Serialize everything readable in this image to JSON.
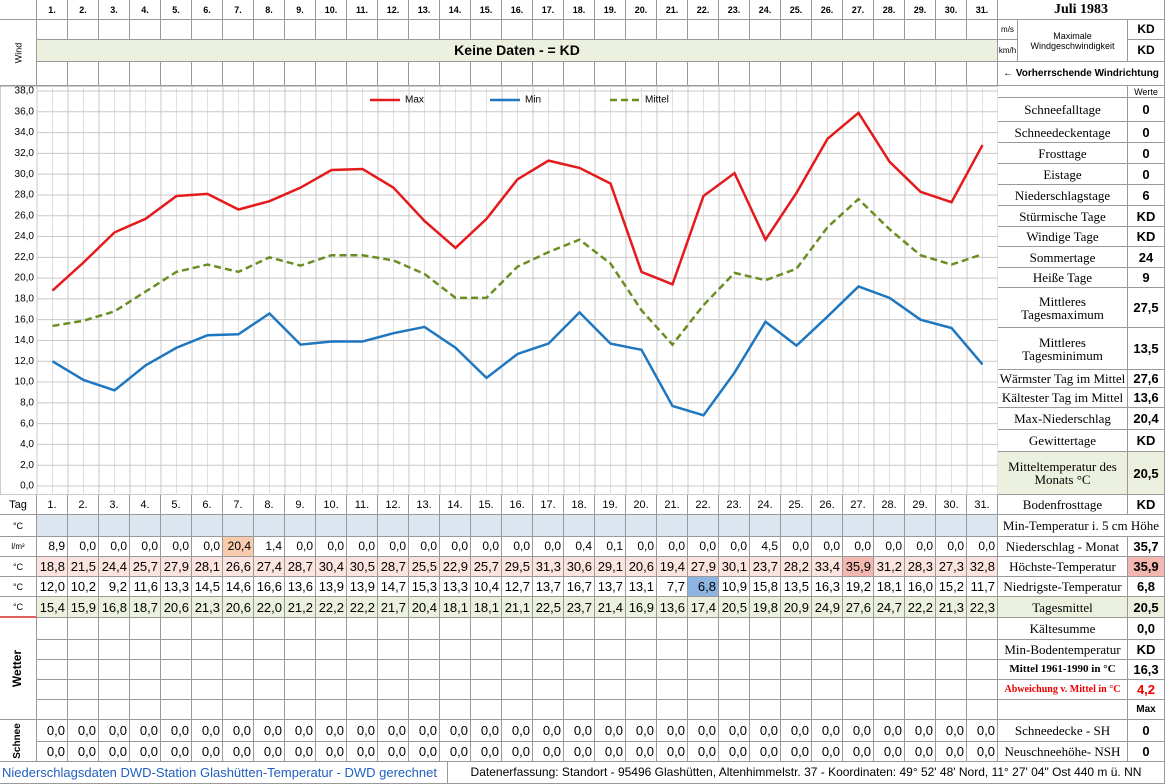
{
  "header": {
    "month": "Juli 1983",
    "wind_label": "Wind",
    "no_data": "Keine Daten -  = KD",
    "unit_ms": "m/s",
    "unit_kmh": "km/h",
    "max_wind_label": "Maximale Windgeschwindigkeit",
    "max_wind_ms": "KD",
    "max_wind_kmh": "KD",
    "wind_dir": "← Vorherrschende Windrichtung",
    "values_header": "Werte"
  },
  "chart_data": {
    "type": "line",
    "categories": [
      "1.",
      "2.",
      "3.",
      "4.",
      "5.",
      "6.",
      "7.",
      "8.",
      "9.",
      "10.",
      "11.",
      "12.",
      "13.",
      "14.",
      "15.",
      "16.",
      "17.",
      "18.",
      "19.",
      "20.",
      "21.",
      "22.",
      "23.",
      "24.",
      "25.",
      "26.",
      "27.",
      "28.",
      "29.",
      "30.",
      "31."
    ],
    "series": [
      {
        "name": "Max",
        "color": "#e41a1c",
        "dash": false,
        "values": [
          18.8,
          21.5,
          24.4,
          25.7,
          27.9,
          28.1,
          26.6,
          27.4,
          28.7,
          30.4,
          30.5,
          28.7,
          25.5,
          22.9,
          25.7,
          29.5,
          31.3,
          30.6,
          29.1,
          20.6,
          19.4,
          27.9,
          30.1,
          23.7,
          28.2,
          33.4,
          35.9,
          31.2,
          28.3,
          27.3,
          32.8
        ],
        "value_labels": [
          "18,8",
          "21,5",
          "24,4",
          "25,7",
          "27,9",
          "28,1",
          "26,6",
          "27,4",
          "28,7",
          "30,4",
          "30,5",
          "28,7",
          "25,5",
          "22,9",
          "25,7",
          "29,5",
          "31,3",
          "30,6",
          "29,1",
          "20,6",
          "19,4",
          "27,9",
          "30,1",
          "23,7",
          "28,2",
          "33,4",
          "35,9",
          "31,2",
          "28,3",
          "27,3",
          "32,8"
        ]
      },
      {
        "name": "Min",
        "color": "#1f77c0",
        "dash": false,
        "values": [
          12.0,
          10.2,
          9.2,
          11.6,
          13.3,
          14.5,
          14.6,
          16.6,
          13.6,
          13.9,
          13.9,
          14.7,
          15.3,
          13.3,
          10.4,
          12.7,
          13.7,
          16.7,
          13.7,
          13.1,
          7.7,
          6.8,
          10.9,
          15.8,
          13.5,
          16.3,
          19.2,
          18.1,
          16.0,
          15.2,
          11.7
        ],
        "value_labels": [
          "12,0",
          "10,2",
          "9,2",
          "11,6",
          "13,3",
          "14,5",
          "14,6",
          "16,6",
          "13,6",
          "13,9",
          "13,9",
          "14,7",
          "15,3",
          "13,3",
          "10,4",
          "12,7",
          "13,7",
          "16,7",
          "13,7",
          "13,1",
          "7,7",
          "6,8",
          "10,9",
          "15,8",
          "13,5",
          "16,3",
          "19,2",
          "18,1",
          "16,0",
          "15,2",
          "11,7"
        ]
      },
      {
        "name": "Mittel",
        "color": "#6b8e23",
        "dash": true,
        "values": [
          15.4,
          15.9,
          16.8,
          18.7,
          20.6,
          21.3,
          20.6,
          22.0,
          21.2,
          22.2,
          22.2,
          21.7,
          20.4,
          18.1,
          18.1,
          21.1,
          22.5,
          23.7,
          21.4,
          16.9,
          13.6,
          17.4,
          20.5,
          19.8,
          20.9,
          24.9,
          27.6,
          24.7,
          22.2,
          21.3,
          22.3
        ],
        "value_labels": [
          "15,4",
          "15,9",
          "16,8",
          "18,7",
          "20,6",
          "21,3",
          "20,6",
          "22,0",
          "21,2",
          "22,2",
          "22,2",
          "21,7",
          "20,4",
          "18,1",
          "18,1",
          "21,1",
          "22,5",
          "23,7",
          "21,4",
          "16,9",
          "13,6",
          "17,4",
          "20,5",
          "19,8",
          "20,9",
          "24,9",
          "27,6",
          "24,7",
          "22,2",
          "21,3",
          "22,3"
        ]
      }
    ],
    "ylim": [
      0,
      38
    ],
    "yticks": [
      {
        "value": 0,
        "label": "0,0"
      },
      {
        "value": 2,
        "label": "2,0"
      },
      {
        "value": 4,
        "label": "4,0"
      },
      {
        "value": 6,
        "label": "6,0"
      },
      {
        "value": 8,
        "label": "8,0"
      },
      {
        "value": 10,
        "label": "10,0"
      },
      {
        "value": 12,
        "label": "12,0"
      },
      {
        "value": 14,
        "label": "14,0"
      },
      {
        "value": 16,
        "label": "16,0"
      },
      {
        "value": 18,
        "label": "18,0"
      },
      {
        "value": 20,
        "label": "20,0"
      },
      {
        "value": 22,
        "label": "22,0"
      },
      {
        "value": 24,
        "label": "24,0"
      },
      {
        "value": 26,
        "label": "26,0"
      },
      {
        "value": 28,
        "label": "28,0"
      },
      {
        "value": 30,
        "label": "30,0"
      },
      {
        "value": 32,
        "label": "32,0"
      },
      {
        "value": 34,
        "label": "34,0"
      },
      {
        "value": 36,
        "label": "36,0"
      },
      {
        "value": 38,
        "label": "38,0"
      }
    ],
    "grid": true,
    "legend": "top"
  },
  "stats": [
    {
      "label": "Schneefalltage",
      "value": "0"
    },
    {
      "label": "Schneedeckentage",
      "value": "0"
    },
    {
      "label": "Frosttage",
      "value": "0"
    },
    {
      "label": "Eistage",
      "value": "0"
    },
    {
      "label": "Niederschlagstage",
      "value": "6"
    },
    {
      "label": "Stürmische Tage",
      "value": "KD"
    },
    {
      "label": "Windige Tage",
      "value": "KD"
    },
    {
      "label": "Sommertage",
      "value": "24"
    },
    {
      "label": "Heiße Tage",
      "value": "9"
    },
    {
      "label": "Mittleres Tagesmaximum",
      "value": "27,5"
    },
    {
      "label": "Mittleres Tagesminimum",
      "value": "13,5"
    },
    {
      "label": "Wärmster Tag im Mittel",
      "value": "27,6"
    },
    {
      "label": "Kältester Tag im Mittel",
      "value": "13,6"
    },
    {
      "label": "Max-Niederschlag",
      "value": "20,4"
    },
    {
      "label": "Gewittertage",
      "value": "KD"
    },
    {
      "label": "Mitteltemperatur des Monats °C",
      "value": "20,5"
    },
    {
      "label": "Bodenfrosttage",
      "value": "KD"
    },
    {
      "label": "Min-Temperatur i. 5 cm Höhe"
    },
    {
      "label": "Niederschlag - Monat",
      "value": "35,7"
    },
    {
      "label": "Höchste-Temperatur",
      "value": "35,9"
    },
    {
      "label": "Niedrigste-Temperatur",
      "value": "6,8"
    },
    {
      "label": "Tagesmittel",
      "value": "20,5"
    },
    {
      "label": "Kältesumme",
      "value": "0,0"
    },
    {
      "label": "Min-Bodentemperatur",
      "value": "KD"
    },
    {
      "label": "Mittel 1961-1990 in °C",
      "value": "16,3"
    },
    {
      "label": "Abweichung v. Mittel in °C",
      "value": "4,2"
    },
    {
      "value": "Max"
    },
    {
      "label": "Schneedecke -  SH",
      "value": "0"
    },
    {
      "label": "Neuschneehöhe- NSH",
      "value": "0"
    }
  ],
  "table": {
    "tag_label": "Tag",
    "temp_unit": "°C",
    "precip_unit": "l/m²",
    "weather_label": "Wetter",
    "snow_label": "Schnee",
    "precip": [
      "8,9",
      "0,0",
      "0,0",
      "0,0",
      "0,0",
      "0,0",
      "20,4",
      "1,4",
      "0,0",
      "0,0",
      "0,0",
      "0,0",
      "0,0",
      "0,0",
      "0,0",
      "0,0",
      "0,0",
      "0,4",
      "0,1",
      "0,0",
      "0,0",
      "0,0",
      "0,0",
      "4,5",
      "0,0",
      "0,0",
      "0,0",
      "0,0",
      "0,0",
      "0,0",
      "0,0"
    ],
    "snow_rows": [
      [
        "0,0",
        "0,0",
        "0,0",
        "0,0",
        "0,0",
        "0,0",
        "0,0",
        "0,0",
        "0,0",
        "0,0",
        "0,0",
        "0,0",
        "0,0",
        "0,0",
        "0,0",
        "0,0",
        "0,0",
        "0,0",
        "0,0",
        "0,0",
        "0,0",
        "0,0",
        "0,0",
        "0,0",
        "0,0",
        "0,0",
        "0,0",
        "0,0",
        "0,0",
        "0,0",
        "0,0"
      ],
      [
        "0,0",
        "0,0",
        "0,0",
        "0,0",
        "0,0",
        "0,0",
        "0,0",
        "0,0",
        "0,0",
        "0,0",
        "0,0",
        "0,0",
        "0,0",
        "0,0",
        "0,0",
        "0,0",
        "0,0",
        "0,0",
        "0,0",
        "0,0",
        "0,0",
        "0,0",
        "0,0",
        "0,0",
        "0,0",
        "0,0",
        "0,0",
        "0,0",
        "0,0",
        "0,0",
        "0,0"
      ]
    ]
  },
  "footer": {
    "left": "Niederschlagsdaten DWD-Station Glashütten-Temperatur -  DWD gerechnet",
    "right": "Datenerfassung: Standort - 95496 Glashütten, Altenhimmelstr. 37 - Koordinaten: 49° 52' 48' Nord,  11° 27' 04\" Ost  440 m ü. NN"
  }
}
